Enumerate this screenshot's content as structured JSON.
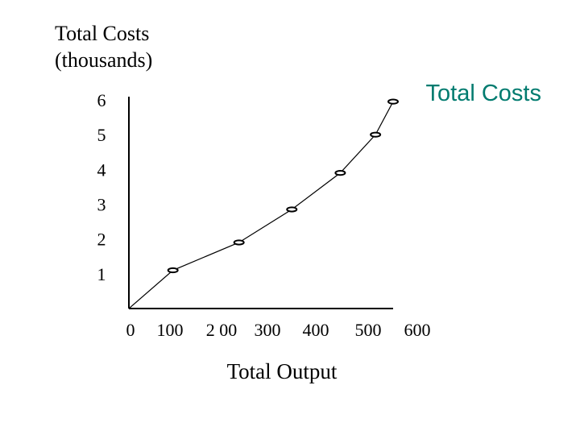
{
  "chart_data": {
    "type": "line",
    "ylabel_lines": [
      "Total Costs",
      "(thousands)"
    ],
    "xlabel": "Total Output",
    "x_tick_labels": [
      "0",
      "100",
      "2 00",
      "300",
      "400",
      "500",
      "600"
    ],
    "y_tick_labels": [
      "1",
      "2",
      "3",
      "4",
      "5",
      "6"
    ],
    "xlim": [
      0,
      600
    ],
    "ylim": [
      0,
      6
    ],
    "grid": false,
    "legend": {
      "placement": "top-right",
      "color": "#007b6f"
    },
    "series": [
      {
        "name": "Total Costs",
        "x": [
          0,
          100,
          250,
          370,
          480,
          560,
          600
        ],
        "y": [
          0,
          1.1,
          1.9,
          2.85,
          3.9,
          5.0,
          5.95
        ]
      }
    ]
  }
}
